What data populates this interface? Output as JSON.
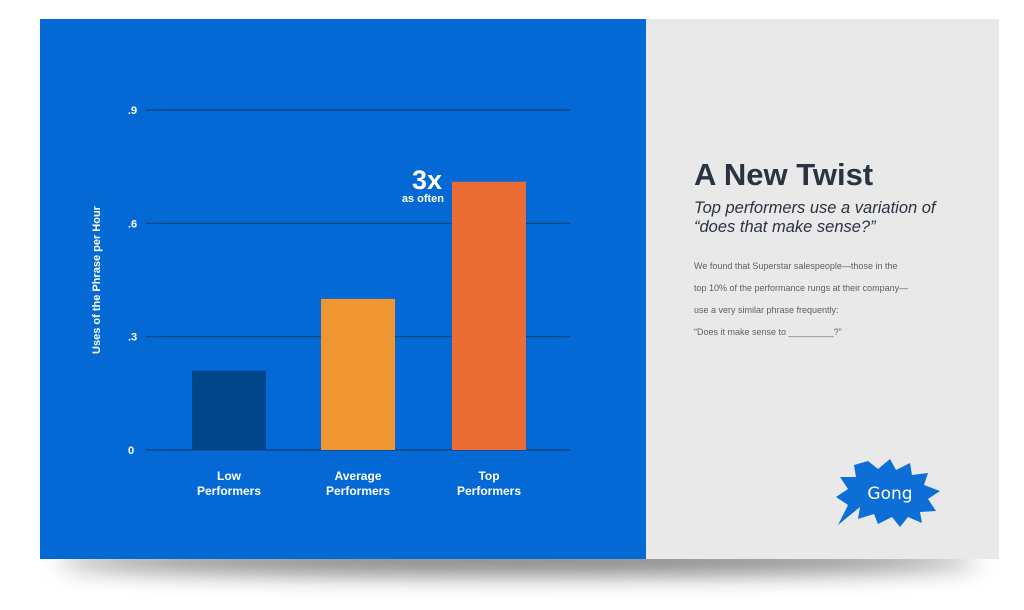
{
  "slide": {
    "heading": "A New Twist",
    "subheading_line1": "Top performers use a variation of",
    "subheading_line2": "“does that make sense?”",
    "body_lines": [
      "We found that Superstar salespeople—those in the",
      "top 10% of the performance rungs at their company—",
      "use a very similar phrase frequently:",
      "“Does it make sense to _________?”"
    ],
    "logo_text": "Gong",
    "colors": {
      "chart_background": "#0469d4",
      "text_panel_background": "#e9e9e9",
      "heading": "#2a3340",
      "logo": "#0d6fd6"
    }
  },
  "chart_data": {
    "type": "bar",
    "categories": [
      [
        "Low",
        "Performers"
      ],
      [
        "Average",
        "Performers"
      ],
      [
        "Top",
        "Performers"
      ]
    ],
    "values": [
      0.21,
      0.4,
      0.71
    ],
    "bar_colors": [
      "#00458a",
      "#ef9532",
      "#ec6c35"
    ],
    "ylabel": "Uses of the Phrase per Hour",
    "ylim": [
      0,
      0.9
    ],
    "yticks": [
      0,
      0.3,
      0.6,
      0.9
    ],
    "ytick_labels": [
      "0",
      ".3",
      ".6",
      ".9"
    ],
    "grid": true,
    "annotation": {
      "category_index": 2,
      "big": "3x",
      "small": "as often"
    }
  }
}
